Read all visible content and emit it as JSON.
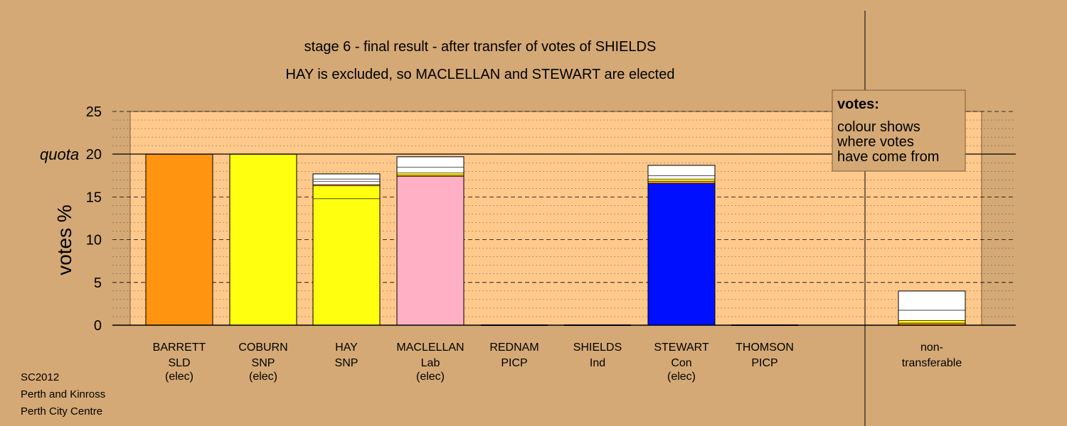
{
  "chart_data": {
    "type": "bar",
    "stacked": true,
    "title": "stage 6 - final result - after transfer of votes of SHIELDS",
    "subtitle": "HAY is excluded, so MACLELLAN and STEWART are elected",
    "ylabel": "votes %",
    "ylim": [
      0,
      25
    ],
    "yticks": [
      "0",
      "5",
      "10",
      "15",
      "20",
      "25"
    ],
    "quota": {
      "label": "quota",
      "value": 20
    },
    "legend": {
      "title": "votes:",
      "lines": [
        "colour shows",
        "where votes",
        "have come from"
      ],
      "placement": "top-right"
    },
    "candidates": [
      {
        "name": "BARRETT",
        "party": "SLD",
        "status": "(elec)",
        "total": 20,
        "segments": [
          {
            "value": 20,
            "color": "#ff9410"
          }
        ]
      },
      {
        "name": "COBURN",
        "party": "SNP",
        "status": "(elec)",
        "total": 20,
        "segments": [
          {
            "value": 20,
            "color": "#ffff10"
          }
        ]
      },
      {
        "name": "HAY",
        "party": "SNP",
        "status": "",
        "total": 17.7,
        "segments": [
          {
            "value": 14.8,
            "color": "#ffff10"
          },
          {
            "value": 1.5,
            "color": "#ffff10"
          },
          {
            "value": 0.15,
            "color": "#ff9410"
          },
          {
            "value": 0.35,
            "color": "#ffffff"
          },
          {
            "value": 0.3,
            "color": "#ffffff"
          },
          {
            "value": 0.6,
            "color": "#ffffff"
          }
        ]
      },
      {
        "name": "MACLELLAN",
        "party": "Lab",
        "status": "(elec)",
        "total": 19.7,
        "segments": [
          {
            "value": 17.4,
            "color": "#ffb0c4"
          },
          {
            "value": 0.15,
            "color": "#ff9410"
          },
          {
            "value": 0.25,
            "color": "#ffff10"
          },
          {
            "value": 0.7,
            "color": "#ffffff"
          },
          {
            "value": 1.2,
            "color": "#ffffff"
          }
        ]
      },
      {
        "name": "REDNAM",
        "party": "PICP",
        "status": "",
        "total": 0,
        "segments": []
      },
      {
        "name": "SHIELDS",
        "party": "Ind",
        "status": "",
        "total": 0,
        "segments": []
      },
      {
        "name": "STEWART",
        "party": "Con",
        "status": "(elec)",
        "total": 18.7,
        "segments": [
          {
            "value": 16.6,
            "color": "#0010ff"
          },
          {
            "value": 0.25,
            "color": "#ff9410"
          },
          {
            "value": 0.25,
            "color": "#ffff10"
          },
          {
            "value": 0.4,
            "color": "#ffffff"
          },
          {
            "value": 1.2,
            "color": "#ffffff"
          }
        ]
      },
      {
        "name": "THOMSON",
        "party": "PICP",
        "status": "",
        "total": 0,
        "segments": []
      }
    ],
    "nontransferable": {
      "label_line1": "non-",
      "label_line2": "transferable",
      "total": 4.0,
      "segments": [
        {
          "value": 0.25,
          "color": "#ff9410"
        },
        {
          "value": 0.3,
          "color": "#ffff10"
        },
        {
          "value": 1.2,
          "color": "#ffffff"
        },
        {
          "value": 2.25,
          "color": "#ffffff"
        }
      ]
    }
  },
  "footer": {
    "line1": "SC2012",
    "line2": "Perth and Kinross",
    "line3": "Perth City Centre"
  },
  "colors": {
    "background": "#d4a976",
    "plot_area": "#ffc98c",
    "legend_box": "#d4a976"
  }
}
